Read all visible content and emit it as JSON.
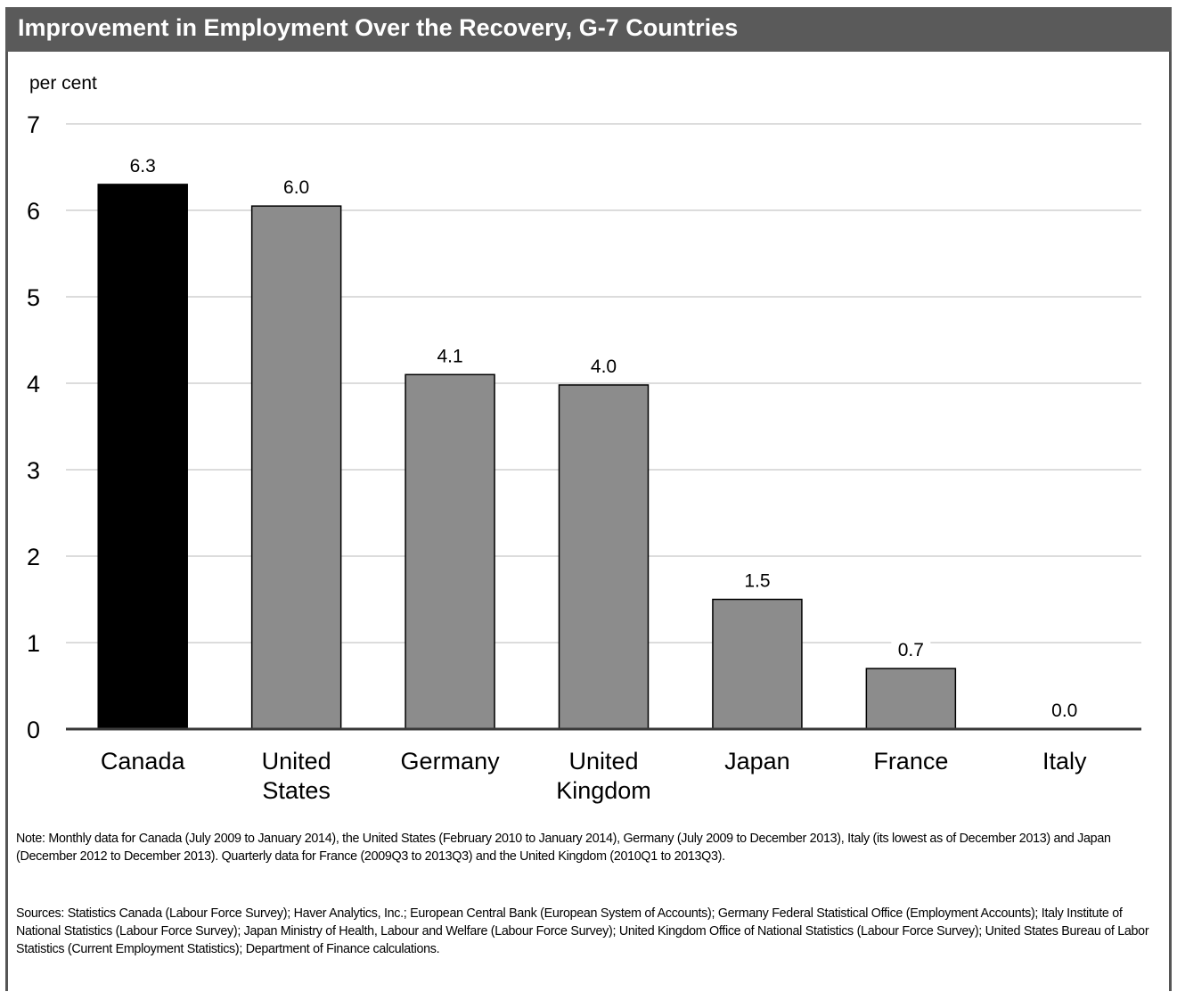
{
  "title": "Improvement in Employment Over the Recovery, G-7 Countries",
  "chart_data": {
    "type": "bar",
    "title": "Improvement in Employment Over the Recovery, G-7 Countries",
    "ylabel": "per cent",
    "xlabel": "",
    "ylim": [
      0,
      7
    ],
    "yticks": [
      "0",
      "1",
      "2",
      "3",
      "4",
      "5",
      "6",
      "7"
    ],
    "grid": true,
    "legend": "none",
    "categories": [
      {
        "lines": [
          "Canada"
        ]
      },
      {
        "lines": [
          "United",
          "States"
        ]
      },
      {
        "lines": [
          "Germany"
        ]
      },
      {
        "lines": [
          "United",
          "Kingdom"
        ]
      },
      {
        "lines": [
          "Japan"
        ]
      },
      {
        "lines": [
          "France"
        ]
      },
      {
        "lines": [
          "Italy"
        ]
      }
    ],
    "values": [
      6.3,
      6.05,
      4.1,
      3.98,
      1.5,
      0.7,
      0.0
    ],
    "labels": [
      "6.3",
      "6.0",
      "4.1",
      "4.0",
      "1.5",
      "0.7",
      "0.0"
    ],
    "colors": [
      "#000000",
      "#8c8c8c",
      "#8c8c8c",
      "#8c8c8c",
      "#8c8c8c",
      "#8c8c8c",
      "#8c8c8c"
    ]
  },
  "note": "Note: Monthly data for Canada (July 2009 to January 2014), the United States (February 2010 to January 2014), Germany (July 2009 to December 2013), Italy (its lowest as of December 2013) and Japan (December 2012 to December 2013). Quarterly data for France (2009Q3 to 2013Q3) and the United Kingdom (2010Q1 to 2013Q3).",
  "sources": "Sources: Statistics Canada (Labour Force Survey); Haver Analytics, Inc.; European Central Bank (European System of Accounts); Germany Federal Statistical Office (Employment Accounts); Italy Institute of National Statistics (Labour Force Survey); Japan Ministry of Health, Labour and Welfare (Labour Force Survey); United Kingdom Office of National Statistics (Labour Force Survey); United States Bureau of Labor Statistics (Current Employment Statistics); Department of Finance calculations."
}
